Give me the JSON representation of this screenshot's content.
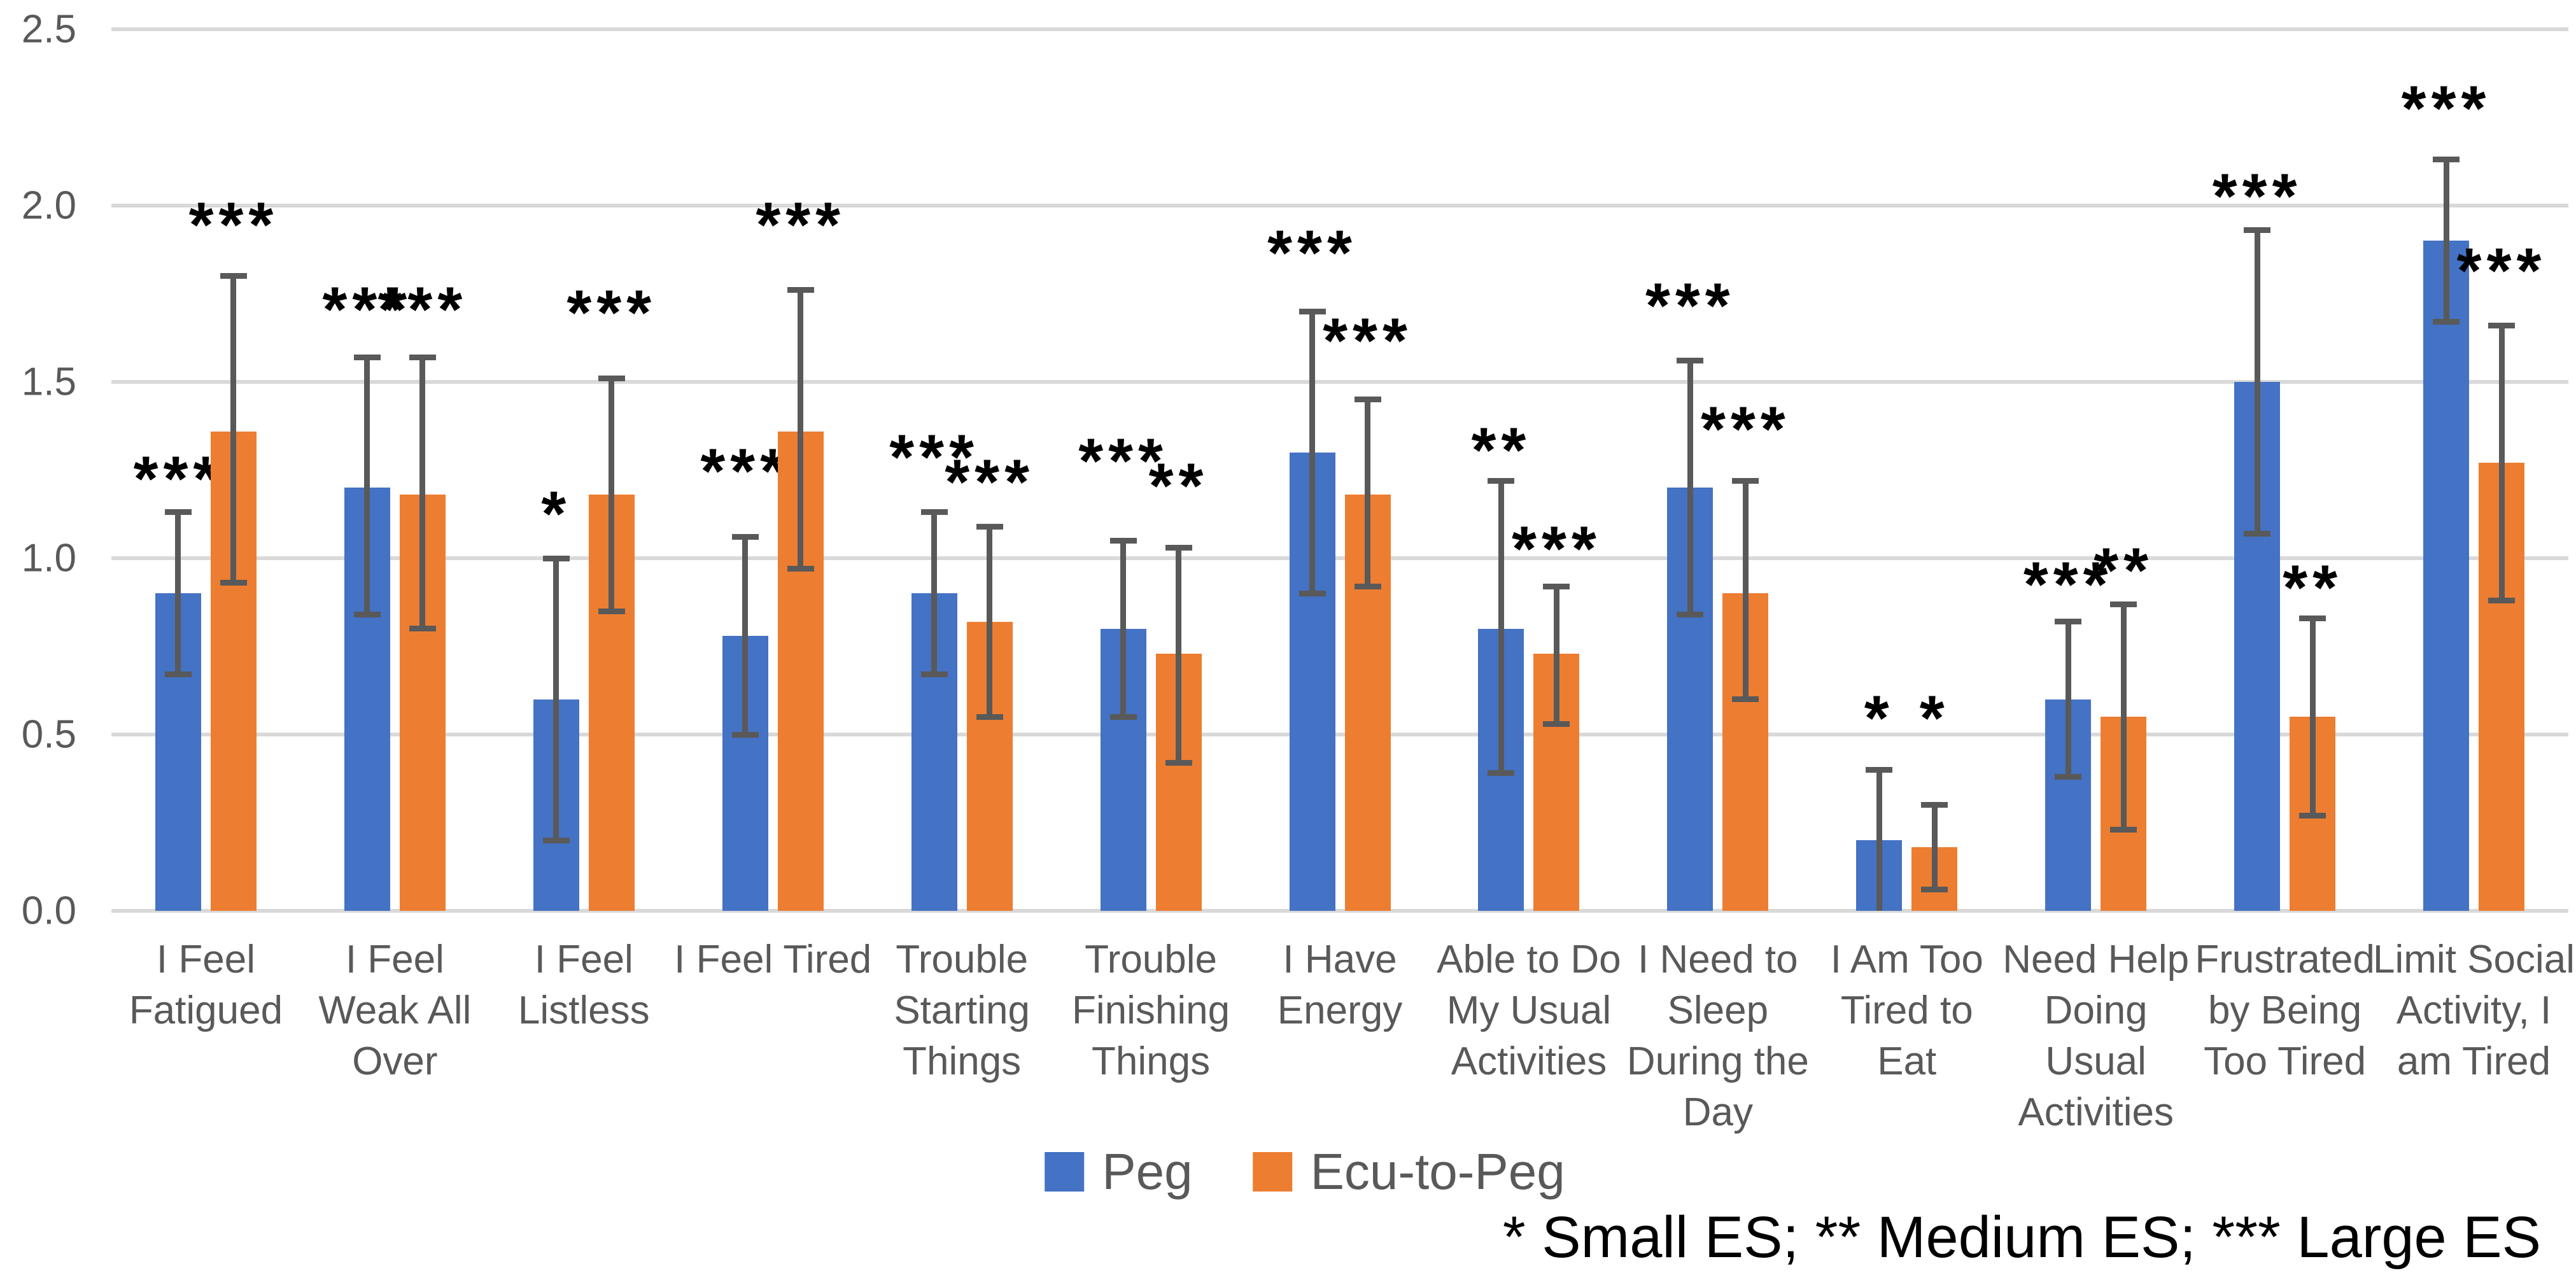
{
  "chart_data": {
    "type": "bar",
    "title": "",
    "xlabel": "",
    "ylabel": "",
    "ylim": [
      0,
      2.5
    ],
    "yticks": [
      "0.0",
      "0.5",
      "1.0",
      "1.5",
      "2.0",
      "2.5"
    ],
    "grid": true,
    "gridline_color": "#d9d9d9",
    "error_bar_color": "#595959",
    "legend_position": "bottom",
    "categories": [
      [
        "I Feel",
        "Fatigued"
      ],
      [
        "I Feel",
        "Weak All",
        "Over"
      ],
      [
        "I Feel",
        "Listless"
      ],
      [
        "I Feel Tired"
      ],
      [
        "Trouble",
        "Starting",
        "Things"
      ],
      [
        "Trouble",
        "Finishing",
        "Things"
      ],
      [
        "I Have",
        "Energy"
      ],
      [
        "Able to Do",
        "My Usual",
        "Activities"
      ],
      [
        "I Need to",
        "Sleep",
        "During the",
        "Day"
      ],
      [
        "I Am Too",
        "Tired to",
        "Eat"
      ],
      [
        "Need Help",
        "Doing",
        "Usual",
        "Activities"
      ],
      [
        "Frustrated",
        "by Being",
        "Too Tired"
      ],
      [
        "Limit Social",
        "Activity, I",
        "am Tired"
      ]
    ],
    "series": [
      {
        "name": "Peg",
        "color": "#4472c4",
        "values": [
          0.9,
          1.2,
          0.6,
          0.78,
          0.9,
          0.8,
          1.3,
          0.8,
          1.2,
          0.2,
          0.6,
          1.5,
          1.9
        ],
        "error_low": [
          0.67,
          0.84,
          0.2,
          0.5,
          0.67,
          0.55,
          0.9,
          0.39,
          0.84,
          0.0,
          0.38,
          1.07,
          1.67
        ],
        "error_high": [
          1.13,
          1.57,
          1.0,
          1.06,
          1.13,
          1.05,
          1.7,
          1.22,
          1.56,
          0.4,
          0.82,
          1.93,
          2.13
        ],
        "sig": [
          "***",
          "***",
          "*",
          "***",
          "***",
          "***",
          "***",
          "**",
          "***",
          "*",
          "***",
          "***",
          "***"
        ],
        "sig_y": [
          1.25,
          1.73,
          1.15,
          1.27,
          1.31,
          1.3,
          1.89,
          1.33,
          1.74,
          0.57,
          0.95,
          2.05,
          2.3
        ]
      },
      {
        "name": "Ecu-to-Peg",
        "color": "#ed7d31",
        "values": [
          1.36,
          1.18,
          1.18,
          1.36,
          0.82,
          0.73,
          1.18,
          0.73,
          0.9,
          0.18,
          0.55,
          0.55,
          1.27
        ],
        "error_low": [
          0.93,
          0.8,
          0.85,
          0.97,
          0.55,
          0.42,
          0.92,
          0.53,
          0.6,
          0.06,
          0.23,
          0.27,
          0.88
        ],
        "error_high": [
          1.8,
          1.57,
          1.51,
          1.76,
          1.09,
          1.03,
          1.45,
          0.92,
          1.22,
          0.3,
          0.87,
          0.83,
          1.66
        ],
        "sig": [
          "***",
          "***",
          "***",
          "***",
          "***",
          "**",
          "***",
          "***",
          "***",
          "*",
          "**",
          "**",
          "***"
        ],
        "sig_y": [
          1.97,
          1.73,
          1.72,
          1.97,
          1.24,
          1.23,
          1.64,
          1.05,
          1.39,
          0.57,
          0.99,
          0.94,
          1.84
        ]
      }
    ],
    "footnote": "* Small ES; ** Medium ES; *** Large ES"
  }
}
